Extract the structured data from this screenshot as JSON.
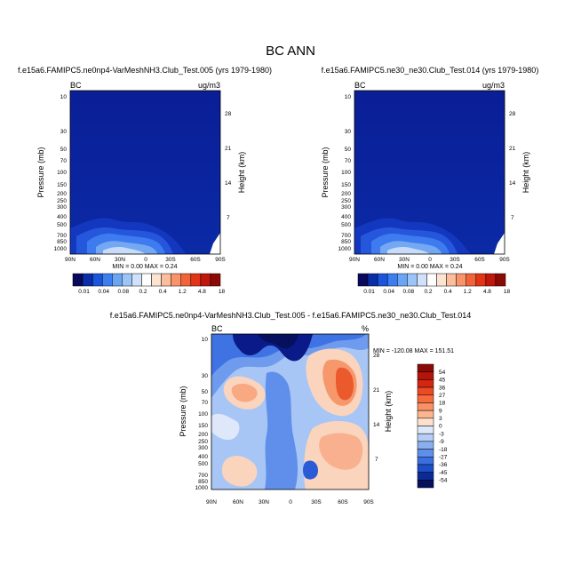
{
  "page": {
    "title": "BC ANN"
  },
  "chart_data": [
    {
      "type": "heatmap",
      "title": "f.e15a6.FAMIPC5.ne0np4-VarMeshNH3.Club_Test.005 (yrs 1979-1980)",
      "left_label": "BC",
      "right_label": "ug/m3",
      "ylabel": "Pressure (mb)",
      "ylabel_right": "Height (km)",
      "x_ticks": [
        "90N",
        "60N",
        "30N",
        "0",
        "30S",
        "60S",
        "90S"
      ],
      "y_ticks": [
        "10",
        "30",
        "50",
        "70",
        "100",
        "150",
        "200",
        "250",
        "300",
        "400",
        "500",
        "700",
        "850",
        "1000"
      ],
      "height_ticks": [
        "28",
        "21",
        "14",
        "7"
      ],
      "min_max": "MIN =   0.00   MAX =   0.24",
      "colorbar_labels": [
        "0.01",
        "0.04",
        "0.08",
        "0.2",
        "0.4",
        "1.2",
        "4.8",
        "18"
      ],
      "colorbar_colors": [
        "#08085e",
        "#0a2ea8",
        "#1a55dc",
        "#3a7ef0",
        "#6aa5f5",
        "#9cc5f7",
        "#cfe1fb",
        "#ffffff",
        "#fde3d2",
        "#fbbd9c",
        "#f8936a",
        "#f3633a",
        "#e23416",
        "#c0170c",
        "#8c0a06"
      ]
    },
    {
      "type": "heatmap",
      "title": "f.e15a6.FAMIPC5.ne30_ne30.Club_Test.014 (yrs 1979-1980)",
      "left_label": "BC",
      "right_label": "ug/m3",
      "ylabel": "Pressure (mb)",
      "ylabel_right": "Height (km)",
      "x_ticks": [
        "90N",
        "60N",
        "30N",
        "0",
        "30S",
        "60S",
        "90S"
      ],
      "y_ticks": [
        "10",
        "30",
        "50",
        "70",
        "100",
        "150",
        "200",
        "250",
        "300",
        "400",
        "500",
        "700",
        "850",
        "1000"
      ],
      "height_ticks": [
        "28",
        "21",
        "14",
        "7"
      ],
      "min_max": "MIN =   0.00   MAX =   0.24",
      "colorbar_labels": [
        "0.01",
        "0.04",
        "0.08",
        "0.2",
        "0.4",
        "1.2",
        "4.8",
        "18"
      ],
      "colorbar_colors": [
        "#08085e",
        "#0a2ea8",
        "#1a55dc",
        "#3a7ef0",
        "#6aa5f5",
        "#9cc5f7",
        "#cfe1fb",
        "#ffffff",
        "#fde3d2",
        "#fbbd9c",
        "#f8936a",
        "#f3633a",
        "#e23416",
        "#c0170c",
        "#8c0a06"
      ]
    },
    {
      "type": "heatmap",
      "title": "f.e15a6.FAMIPC5.ne0np4-VarMeshNH3.Club_Test.005 - f.e15a6.FAMIPC5.ne30_ne30.Club_Test.014",
      "left_label": "BC",
      "right_label": "%",
      "ylabel": "Pressure (mb)",
      "ylabel_right": "Height (km)",
      "x_ticks": [
        "90N",
        "60N",
        "30N",
        "0",
        "30S",
        "60S",
        "90S"
      ],
      "y_ticks": [
        "10",
        "30",
        "50",
        "70",
        "100",
        "150",
        "200",
        "250",
        "300",
        "400",
        "500",
        "700",
        "850",
        "1000"
      ],
      "height_ticks": [
        "28",
        "21",
        "14",
        "7"
      ],
      "min_max": "MIN = -120.08  MAX = 151.51",
      "colorbar_labels": [
        "54",
        "45",
        "36",
        "27",
        "18",
        "9",
        "3",
        "0",
        "-3",
        "-9",
        "-18",
        "-27",
        "-36",
        "-45",
        "-54"
      ],
      "colorbar_colors": [
        "#8c0a06",
        "#b51409",
        "#d42611",
        "#eb4a24",
        "#f56b3c",
        "#f99164",
        "#fbb690",
        "#fde0cc",
        "#dde8fa",
        "#b6cdf6",
        "#8aaff0",
        "#5f8fea",
        "#3a6fe0",
        "#1c4ec8",
        "#0c2a96",
        "#06105c"
      ]
    }
  ]
}
